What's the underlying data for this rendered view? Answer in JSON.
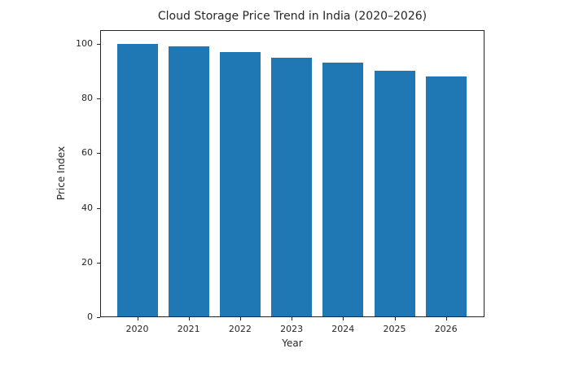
{
  "chart_data": {
    "type": "bar",
    "title": "Cloud Storage Price Trend in India (2020–2026)",
    "xlabel": "Year",
    "ylabel": "Price Index",
    "categories": [
      "2020",
      "2021",
      "2022",
      "2023",
      "2024",
      "2025",
      "2026"
    ],
    "values": [
      100,
      99,
      97,
      95,
      93,
      90,
      88
    ],
    "ylim": [
      0,
      105
    ],
    "yticks": [
      "0",
      "20",
      "40",
      "60",
      "80",
      "100"
    ],
    "grid": false,
    "legend": null,
    "bar_color": "#1f77b4"
  }
}
